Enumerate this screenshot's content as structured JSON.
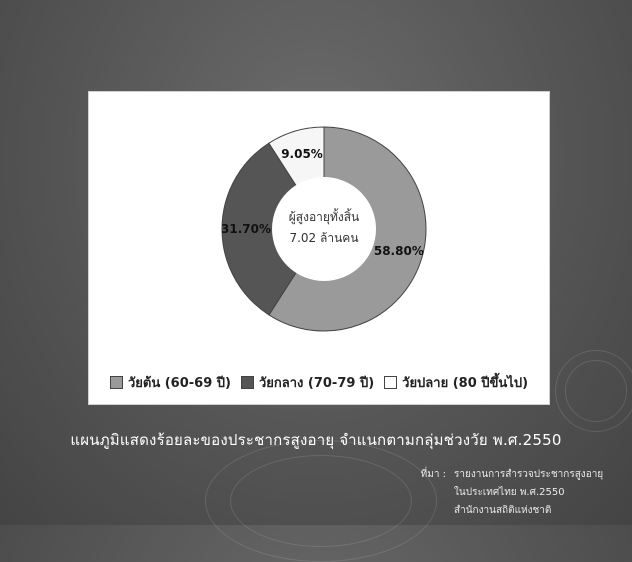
{
  "chart_data": {
    "type": "pie",
    "categories": [
      "วัยต้น (60-69 ปี)",
      "วัยกลาง (70-79 ปี)",
      "วัยปลาย (80 ปีขึ้นไป)"
    ],
    "values": [
      58.8,
      31.7,
      9.05
    ],
    "value_labels": [
      "58.80%",
      "31.70%",
      "9.05%"
    ],
    "colors": [
      "#9a9a9a",
      "#555555",
      "#f6f6f6"
    ],
    "center_text": [
      "ผู้สูงอายุทั้งสิ้น",
      "7.02 ล้านคน"
    ],
    "legend_position": "bottom",
    "title": "แผนภูมิแสดงร้อยละของประชากรสูงอายุ จำแนกตามกลุ่มช่วงวัย พ.ศ.2550"
  },
  "source": {
    "label": "ที่มา :",
    "lines": [
      "รายงานการสำรวจประชากรสูงอายุ",
      "ในประเทศไทย พ.ศ.2550",
      "สำนักงานสถิติแห่งชาติ"
    ]
  }
}
